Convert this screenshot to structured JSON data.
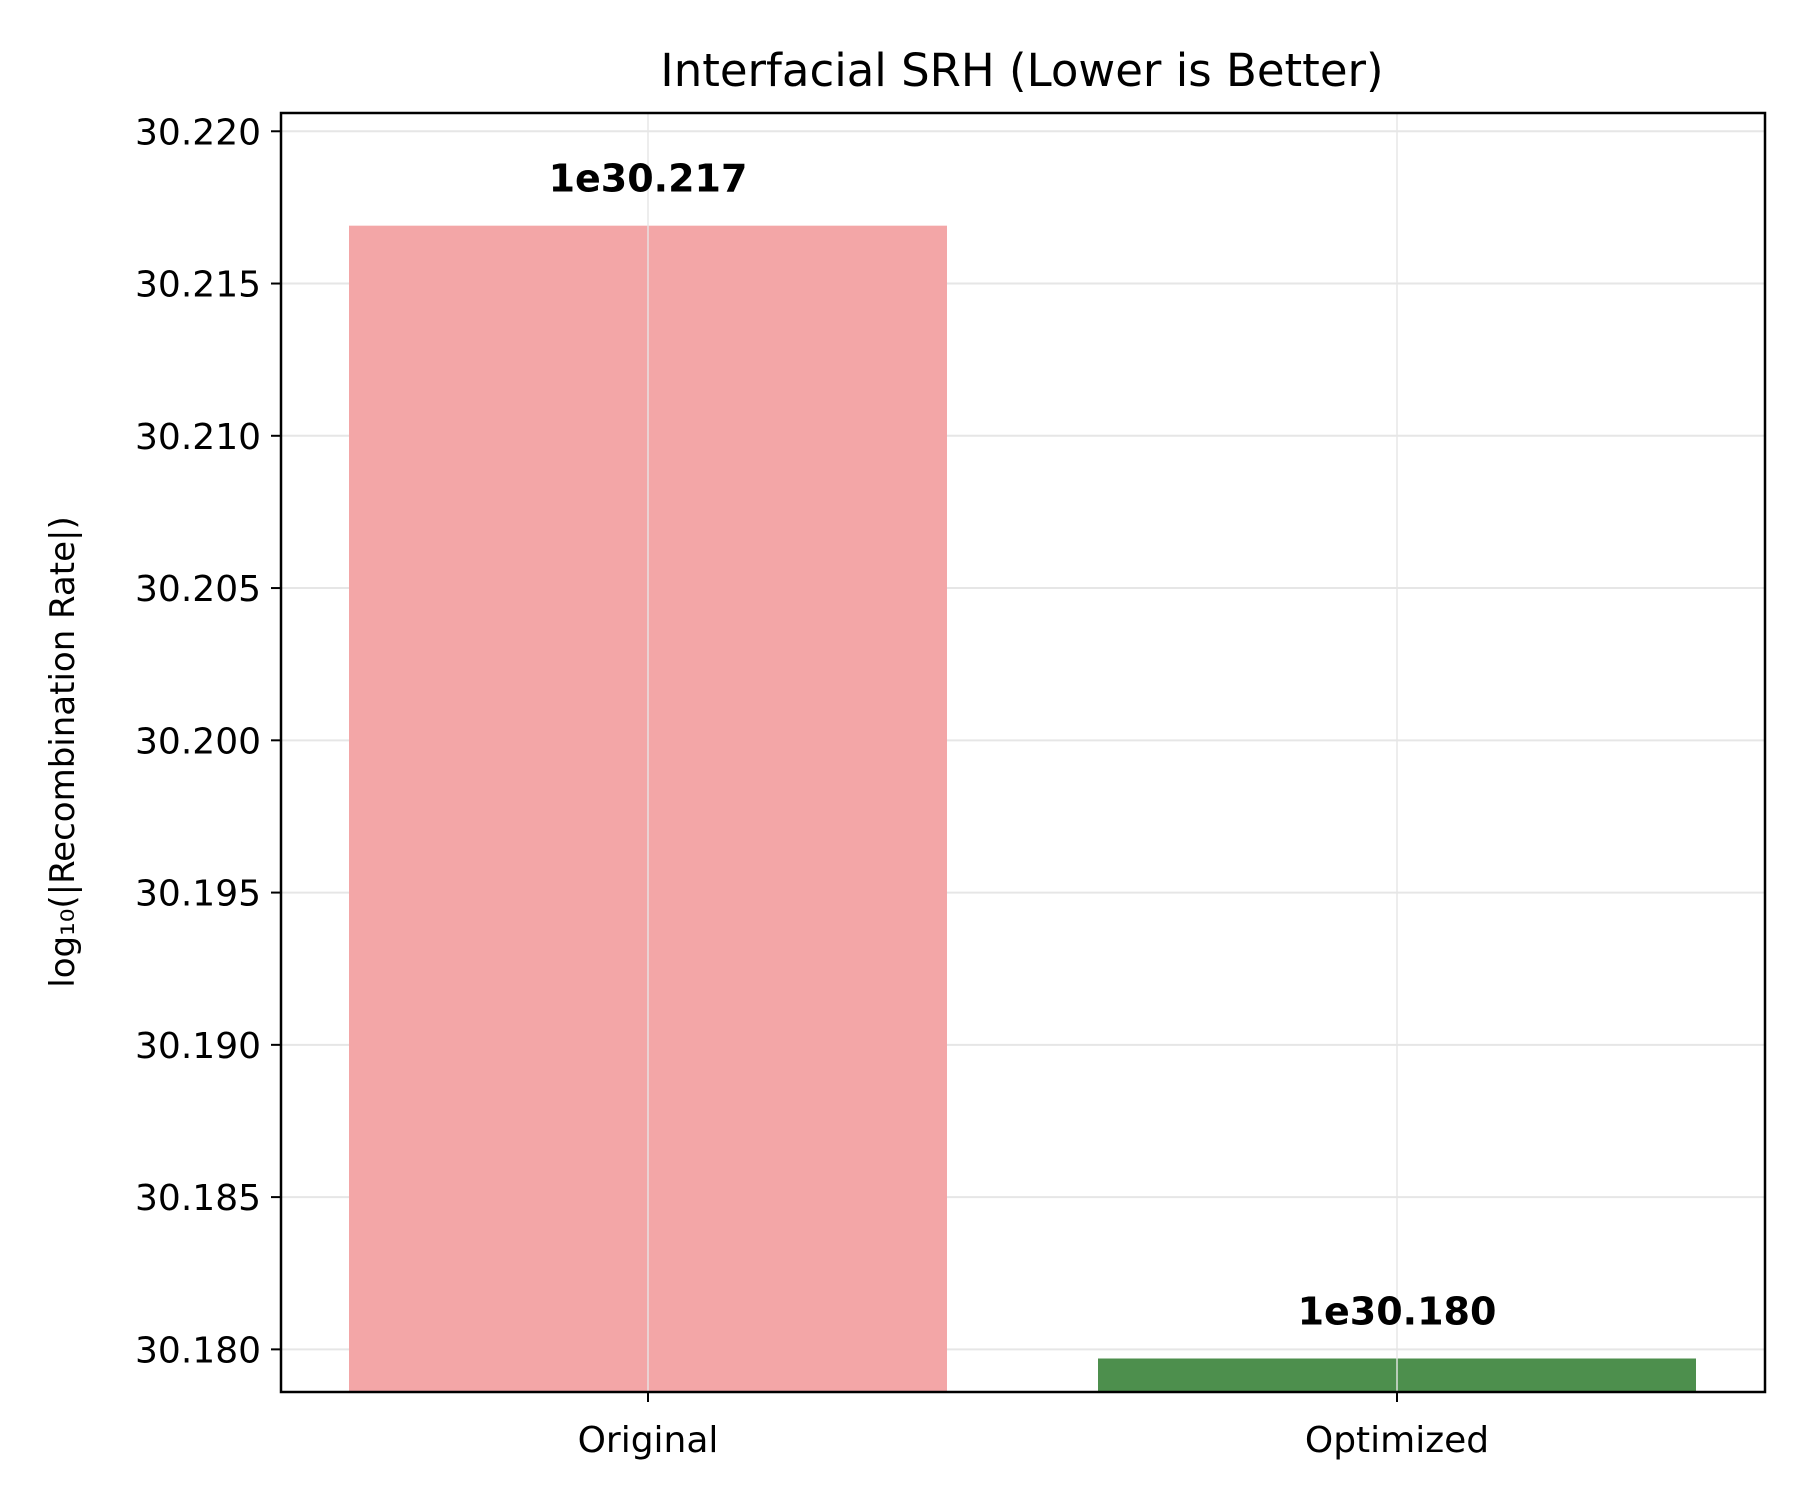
{
  "chart_data": {
    "type": "bar",
    "title": "Interfacial SRH (Lower is Better)",
    "xlabel": "",
    "ylabel": "log₁₀(|Recombination Rate|)",
    "categories": [
      "Original",
      "Optimized"
    ],
    "values": [
      30.2169,
      30.1797
    ],
    "data_labels": [
      "1e30.217",
      "1e30.180"
    ],
    "colors": [
      "#f3a6a7",
      "#4d8f4d"
    ],
    "ylim": [
      30.1786,
      30.2206
    ],
    "yticks": [
      30.18,
      30.185,
      30.19,
      30.195,
      30.2,
      30.205,
      30.21,
      30.215,
      30.22
    ],
    "ytick_labels": [
      "30.180",
      "30.185",
      "30.190",
      "30.195",
      "30.200",
      "30.205",
      "30.210",
      "30.215",
      "30.220"
    ],
    "grid": true,
    "legend": "none"
  }
}
